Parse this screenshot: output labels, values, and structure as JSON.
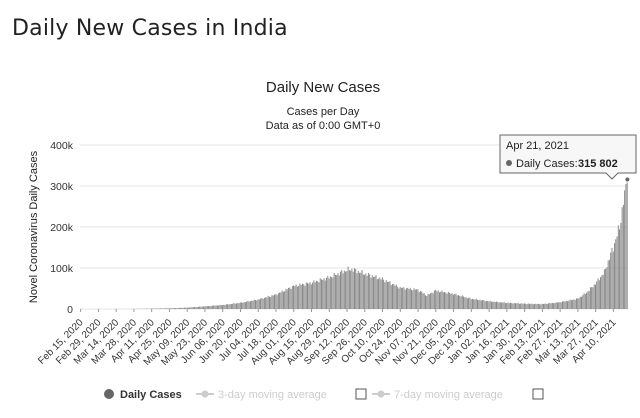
{
  "page_title": "Daily New Cases in India",
  "colors": {
    "bar": "#808080",
    "grid": "#e6e6e6",
    "tooltip_border": "#666666",
    "legend_inactive": "#cccccc"
  },
  "chart_data": {
    "type": "bar",
    "title": "Daily New Cases",
    "subtitle_line1": "Cases per Day",
    "subtitle_line2": "Data as of 0:00 GMT+0",
    "ylabel": "Novel Coronavirus Daily Cases",
    "xlabel": "",
    "ylim": [
      0,
      400000
    ],
    "grid": true,
    "legend": "bottom",
    "y_ticks": [
      {
        "value": 0,
        "label": "0"
      },
      {
        "value": 100000,
        "label": "100k"
      },
      {
        "value": 200000,
        "label": "200k"
      },
      {
        "value": 300000,
        "label": "300k"
      },
      {
        "value": 400000,
        "label": "400k"
      }
    ],
    "x_tick_labels": [
      "Feb 15, 2020",
      "Feb 29, 2020",
      "Mar 14, 2020",
      "Mar 28, 2020",
      "Apr 11, 2020",
      "Apr 25, 2020",
      "May 09, 2020",
      "May 23, 2020",
      "Jun 06, 2020",
      "Jun 20, 2020",
      "Jul 04, 2020",
      "Jul 18, 2020",
      "Aug 01, 2020",
      "Aug 15, 2020",
      "Aug 29, 2020",
      "Sep 12, 2020",
      "Sep 26, 2020",
      "Oct 10, 2020",
      "Oct 24, 2020",
      "Nov 07, 2020",
      "Nov 21, 2020",
      "Dec 05, 2020",
      "Dec 19, 2020",
      "Jan 02, 2021",
      "Jan 16, 2021",
      "Jan 30, 2021",
      "Feb 13, 2021",
      "Feb 27, 2021",
      "Mar 13, 2021",
      "Mar 27, 2021",
      "Apr 10, 2021"
    ],
    "series": [
      {
        "name": "Daily Cases",
        "start_date": "2020-02-15",
        "end_date": "2021-04-21",
        "keypoints": [
          {
            "date": "2020-02-15",
            "value": 0
          },
          {
            "date": "2020-03-14",
            "value": 50
          },
          {
            "date": "2020-03-28",
            "value": 200
          },
          {
            "date": "2020-04-11",
            "value": 900
          },
          {
            "date": "2020-04-25",
            "value": 1800
          },
          {
            "date": "2020-05-09",
            "value": 3300
          },
          {
            "date": "2020-05-23",
            "value": 6500
          },
          {
            "date": "2020-06-06",
            "value": 9800
          },
          {
            "date": "2020-06-20",
            "value": 15000
          },
          {
            "date": "2020-07-04",
            "value": 23000
          },
          {
            "date": "2020-07-18",
            "value": 35000
          },
          {
            "date": "2020-08-01",
            "value": 56000
          },
          {
            "date": "2020-08-15",
            "value": 64000
          },
          {
            "date": "2020-08-29",
            "value": 77000
          },
          {
            "date": "2020-09-12",
            "value": 95000
          },
          {
            "date": "2020-09-16",
            "value": 97000
          },
          {
            "date": "2020-09-26",
            "value": 86000
          },
          {
            "date": "2020-10-10",
            "value": 73000
          },
          {
            "date": "2020-10-24",
            "value": 52000
          },
          {
            "date": "2020-11-07",
            "value": 47000
          },
          {
            "date": "2020-11-14",
            "value": 33000
          },
          {
            "date": "2020-11-21",
            "value": 45000
          },
          {
            "date": "2020-12-05",
            "value": 37000
          },
          {
            "date": "2020-12-19",
            "value": 25000
          },
          {
            "date": "2021-01-02",
            "value": 19000
          },
          {
            "date": "2021-01-16",
            "value": 15000
          },
          {
            "date": "2021-01-30",
            "value": 13000
          },
          {
            "date": "2021-02-13",
            "value": 12000
          },
          {
            "date": "2021-02-27",
            "value": 16500
          },
          {
            "date": "2021-03-13",
            "value": 25000
          },
          {
            "date": "2021-03-20",
            "value": 40000
          },
          {
            "date": "2021-03-27",
            "value": 62000
          },
          {
            "date": "2021-04-03",
            "value": 90000
          },
          {
            "date": "2021-04-10",
            "value": 150000
          },
          {
            "date": "2021-04-15",
            "value": 200000
          },
          {
            "date": "2021-04-18",
            "value": 261000
          },
          {
            "date": "2021-04-20",
            "value": 295000
          },
          {
            "date": "2021-04-21",
            "value": 315802
          }
        ]
      }
    ],
    "tooltip": {
      "date": "Apr 21, 2021",
      "series_label": "Daily Cases:",
      "value_label": "315 802",
      "value": 315802
    },
    "legend_items": [
      {
        "label": "Daily Cases",
        "active": true
      },
      {
        "label": "3-day moving average",
        "active": false
      },
      {
        "label": "7-day moving average",
        "active": false
      }
    ]
  }
}
